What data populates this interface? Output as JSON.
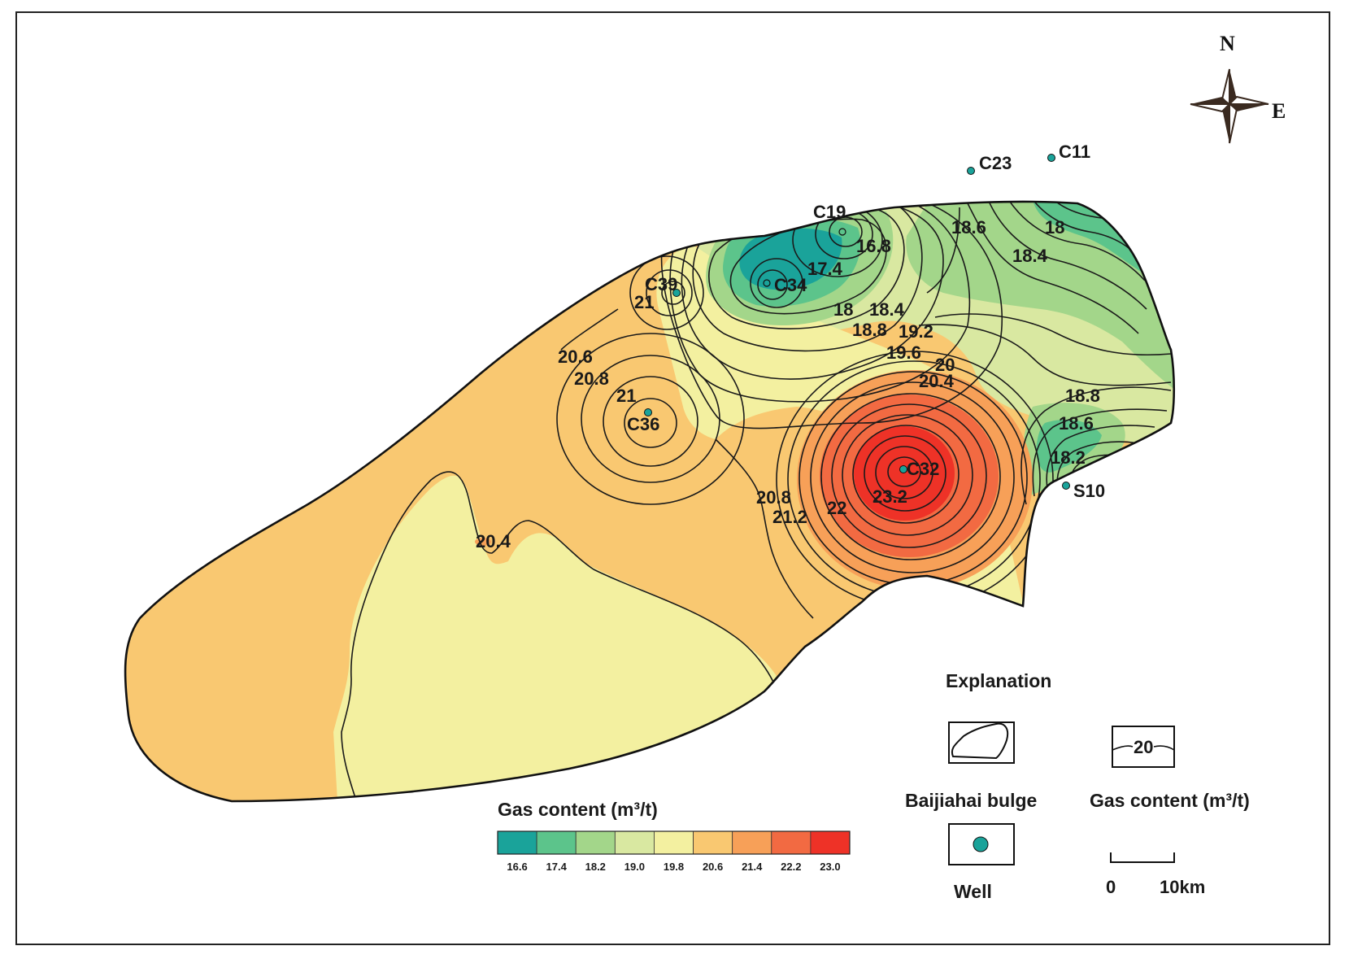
{
  "map": {
    "region_name": "Baijiahai bulge",
    "compass": {
      "north": "N",
      "east": "E"
    },
    "wells": [
      {
        "id": "C11"
      },
      {
        "id": "C23"
      },
      {
        "id": "C19"
      },
      {
        "id": "C34"
      },
      {
        "id": "C39"
      },
      {
        "id": "C36"
      },
      {
        "id": "C32"
      },
      {
        "id": "S10"
      }
    ],
    "contour_labels": [
      "18.6",
      "18",
      "18.4",
      "16.8",
      "17.4",
      "18",
      "18.4",
      "18.8",
      "19.2",
      "19.6",
      "20",
      "20.4",
      "21",
      "20.6",
      "20.8",
      "21",
      "18.8",
      "18.6",
      "18.2",
      "20.8",
      "21.2",
      "22",
      "23.2",
      "20.4"
    ]
  },
  "colorbar": {
    "title": "Gas content (m³/t)",
    "ticks": [
      "16.6",
      "17.4",
      "18.2",
      "19.0",
      "19.8",
      "20.6",
      "21.4",
      "22.2",
      "23.0"
    ],
    "colors": [
      "#1aa39a",
      "#5cc48b",
      "#a3d68a",
      "#d9e8a1",
      "#f3f0a0",
      "#f9c871",
      "#f7a058",
      "#f26a42",
      "#ee3227"
    ]
  },
  "explanation": {
    "title": "Explanation",
    "items": {
      "bulge": "Baijiahai  bulge",
      "contour_value": "20",
      "contour": "Gas content (m³/t)",
      "well": "Well"
    },
    "scale_bar": {
      "start": "0",
      "end": "10km"
    }
  }
}
